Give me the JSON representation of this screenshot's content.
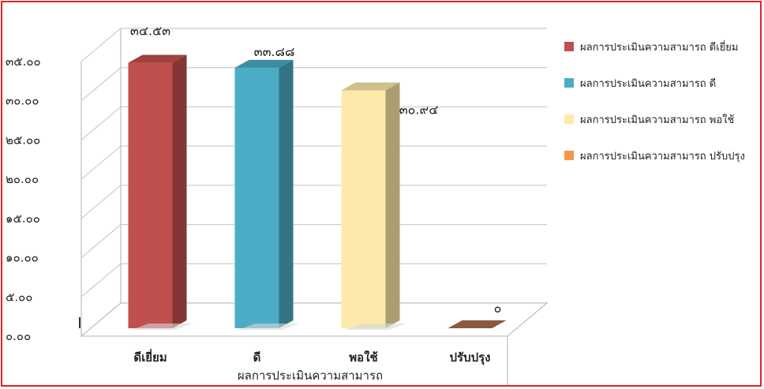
{
  "chart_data": {
    "type": "bar",
    "three_d": true,
    "categories": [
      "ดีเยี่ยม",
      "ดี",
      "พอใช้",
      "ปรับปรุง"
    ],
    "values": [
      34.53,
      33.88,
      30.94,
      0
    ],
    "data_labels": [
      "๓๔.๕๓",
      "๓๓.๘๘",
      "๓๐.๙๔",
      "๐"
    ],
    "xlabel": "ผลการประเมินความสามารถ",
    "ylabel": "",
    "ylim": [
      0,
      35
    ],
    "y_ticks": [
      0,
      5,
      10,
      15,
      20,
      25,
      30,
      35
    ],
    "y_tick_labels": [
      "๐.๐๐",
      "๕.๐๐",
      "๑๐.๐๐",
      "๑๕.๐๐",
      "๒๐.๐๐",
      "๒๕.๐๐",
      "๓๐.๐๐",
      "๓๕.๐๐"
    ],
    "grid": true,
    "legend_position": "right",
    "legend": [
      {
        "label": "ผลการประเมินความสามารถ ดีเยี่ยม",
        "color": "#c0504d"
      },
      {
        "label": "ผลการประเมินความสามารถ ดี",
        "color": "#4bacc6"
      },
      {
        "label": "ผลการประเมินความสามารถ พอใช้",
        "color": "#fde9a9"
      },
      {
        "label": "ผลการประเมินความสามารถ ปรับปรุง",
        "color": "#f79646"
      }
    ],
    "colors": [
      "#c0504d",
      "#4bacc6",
      "#fde9a9",
      "#8b5a3c"
    ]
  }
}
